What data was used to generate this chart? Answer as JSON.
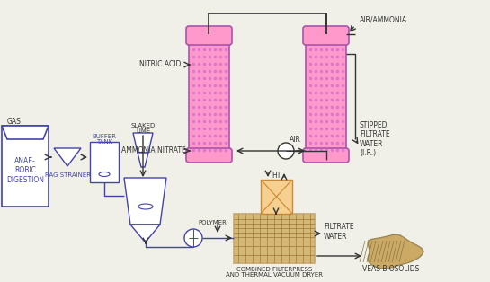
{
  "bg_color": "#f0f0e8",
  "blue": "#4444aa",
  "pink": "#ff99cc",
  "pink_fill": "#ff88bb",
  "orange": "#cc8833",
  "orange_fill": "#ddaa55",
  "tan": "#c8a870",
  "line_color": "#333333",
  "title": "",
  "labels": {
    "gas": "GAS",
    "anaerobic": "ANAE-\nROBIC\nDIGESTION",
    "rag_strainer": "RAG STRAINER",
    "buffer_tank": "BUFFER\nTANK",
    "slaked_lime": "SLAKED\nLIME",
    "polymer": "POLYMER",
    "nitric_acid": "NITRIC ACID",
    "ammonia_nitrate": "AMMONIA NITRATE",
    "air_ammonia": "AIR/AMMONIA",
    "air": "AIR",
    "ht": "HT",
    "combined": "COMBINED FILTERPRESS\nAND THERMAL VACUUM DRYER",
    "filtrate_water": "FILTRATE\nWATER",
    "stipped": "STIPPED\nFILTRATE\nWATER\n(I.R.)",
    "veas": "VEAS BIOSOLIDS"
  }
}
